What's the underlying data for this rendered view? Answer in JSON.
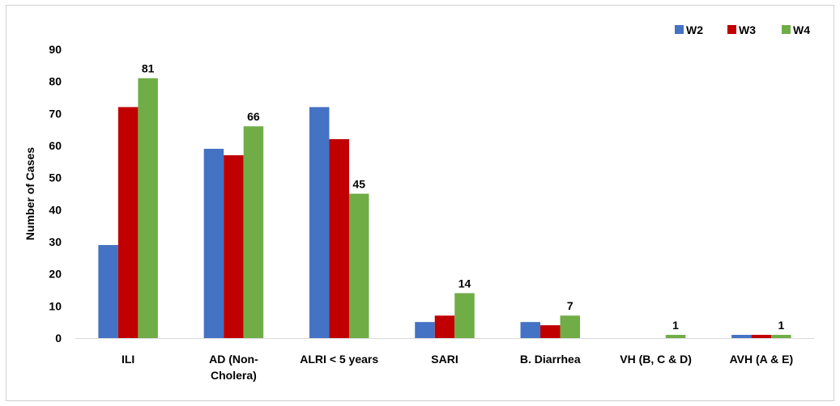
{
  "chart_data": {
    "type": "bar",
    "categories": [
      "ILI",
      "AD (Non-Cholera)",
      "ALRI < 5 years",
      "SARI",
      "B. Diarrhea",
      "VH (B, C & D)",
      "AVH (A & E)"
    ],
    "category_lines": [
      [
        "ILI"
      ],
      [
        "AD (Non-",
        "Cholera)"
      ],
      [
        "ALRI < 5 years"
      ],
      [
        "SARI"
      ],
      [
        "B. Diarrhea"
      ],
      [
        "VH (B, C & D)"
      ],
      [
        "AVH (A & E)"
      ]
    ],
    "series": [
      {
        "name": "W2",
        "color": "#4472C4",
        "values": [
          29,
          59,
          72,
          5,
          5,
          0,
          1
        ]
      },
      {
        "name": "W3",
        "color": "#C00000",
        "values": [
          72,
          57,
          62,
          7,
          4,
          0,
          1
        ]
      },
      {
        "name": "W4",
        "color": "#70AD47",
        "values": [
          81,
          66,
          45,
          14,
          7,
          1,
          1
        ]
      }
    ],
    "data_labels": {
      "series": "W4",
      "values": [
        "81",
        "66",
        "45",
        "14",
        "7",
        "1",
        "1"
      ]
    },
    "ylabel": "Number of Cases",
    "xlabel": "",
    "ylim": [
      0,
      90
    ],
    "yticks": [
      0,
      10,
      20,
      30,
      40,
      50,
      60,
      70,
      80,
      90
    ],
    "legend_position": "top-right",
    "grid": false
  }
}
